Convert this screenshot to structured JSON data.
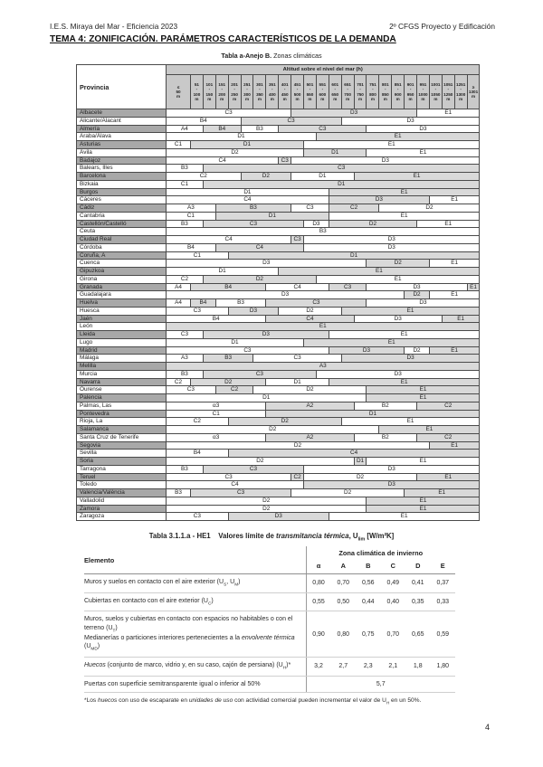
{
  "page": {
    "header_left": "I.E.S. Miraya del Mar - Eficiencia 2023",
    "header_right": "2º CFGS Proyecto y Edificación",
    "title": "TEMA 4: ZONIFICACIÓN. PARÁMETROS CARACTERÍSTICOS DE LA DEMANDA",
    "page_number": "4"
  },
  "climate_table": {
    "caption_bold": "Tabla a-Anejo B.",
    "caption_rest": " Zonas climáticas",
    "province_header": "Provincia",
    "altitude_header": "Altitud sobre el nivel del mar (h)",
    "altitude_unit": "m",
    "altitude_columns": [
      "≤ 50",
      "51-100",
      "101-150",
      "151-200",
      "201-250",
      "251-300",
      "301-350",
      "351-400",
      "401-450",
      "451-500",
      "501-550",
      "551-600",
      "601-650",
      "651-700",
      "701-750",
      "751-800",
      "801-850",
      "851-900",
      "901-950",
      "951-1000",
      "1001-1050",
      "1051-1250",
      "1251-1300",
      "≥ 1301"
    ],
    "rows": [
      {
        "province": "Albacete",
        "cells": [
          [
            "C3",
            9
          ],
          [
            "D3",
            10
          ],
          [
            "E1",
            5
          ]
        ]
      },
      {
        "province": "Alicante/Alacant",
        "cells": [
          [
            "B4",
            5
          ],
          [
            "C3",
            8
          ],
          [
            "D3",
            11
          ]
        ]
      },
      {
        "province": "Almería",
        "cells": [
          [
            "A4",
            2
          ],
          [
            "B4",
            3
          ],
          [
            "B3",
            3
          ],
          [
            "C3",
            7
          ],
          [
            "D3",
            9
          ]
        ]
      },
      {
        "province": "Araba/Álava",
        "cells": [
          [
            "D1",
            11
          ],
          [
            "E1",
            13
          ]
        ]
      },
      {
        "province": "Asturias",
        "cells": [
          [
            "C1",
            1
          ],
          [
            "D1",
            9
          ],
          [
            "E1",
            14
          ]
        ]
      },
      {
        "province": "Ávila",
        "cells": [
          [
            "D2",
            10
          ],
          [
            "D1",
            5
          ],
          [
            "E1",
            9
          ]
        ]
      },
      {
        "province": "Badajoz",
        "cells": [
          [
            "C4",
            8
          ],
          [
            "C3",
            1
          ],
          [
            "D3",
            15
          ]
        ]
      },
      {
        "province": "Balears, Illes",
        "cells": [
          [
            "B3",
            2
          ],
          [
            "C3",
            22
          ]
        ]
      },
      {
        "province": "Barcelona",
        "cells": [
          [
            "C2",
            5
          ],
          [
            "D2",
            4
          ],
          [
            "D1",
            5
          ],
          [
            "E1",
            10
          ]
        ]
      },
      {
        "province": "Bizkaia",
        "cells": [
          [
            "C1",
            2
          ],
          [
            "D1",
            22
          ]
        ]
      },
      {
        "province": "Burgos",
        "cells": [
          [
            "D1",
            12
          ],
          [
            "E1",
            12
          ]
        ]
      },
      {
        "province": "Cáceres",
        "cells": [
          [
            "C4",
            12
          ],
          [
            "D3",
            8
          ],
          [
            "E1",
            4
          ]
        ]
      },
      {
        "province": "Cádiz",
        "cells": [
          [
            "A3",
            3
          ],
          [
            "B3",
            6
          ],
          [
            "C3",
            3
          ],
          [
            "C2",
            4
          ],
          [
            "D2",
            8
          ]
        ]
      },
      {
        "province": "Cantabria",
        "cells": [
          [
            "C1",
            3
          ],
          [
            "D1",
            9
          ],
          [
            "E1",
            12
          ]
        ]
      },
      {
        "province": "Castellón/Castelló",
        "cells": [
          [
            "B3",
            2
          ],
          [
            "C3",
            8
          ],
          [
            "D3",
            2
          ],
          [
            "D2",
            7
          ],
          [
            "E1",
            5
          ]
        ]
      },
      {
        "province": "Ceuta",
        "cells": [
          [
            "B3",
            24
          ]
        ]
      },
      {
        "province": "Ciudad Real",
        "cells": [
          [
            "C4",
            9
          ],
          [
            "C3",
            1
          ],
          [
            "D3",
            14
          ]
        ]
      },
      {
        "province": "Córdoba",
        "cells": [
          [
            "B4",
            3
          ],
          [
            "C4",
            7
          ],
          [
            "D3",
            14
          ]
        ]
      },
      {
        "province": "Coruña, A",
        "cells": [
          [
            "C1",
            4
          ],
          [
            "D1",
            20
          ]
        ]
      },
      {
        "province": "Cuenca",
        "cells": [
          [
            "D3",
            15
          ],
          [
            "D2",
            5
          ],
          [
            "E1",
            4
          ]
        ]
      },
      {
        "province": "Gipuzkoa",
        "cells": [
          [
            "D1",
            8
          ],
          [
            "E1",
            16
          ]
        ]
      },
      {
        "province": "Girona",
        "cells": [
          [
            "C2",
            2
          ],
          [
            "D2",
            9
          ],
          [
            "E1",
            13
          ]
        ]
      },
      {
        "province": "Granada",
        "cells": [
          [
            "A4",
            1
          ],
          [
            "B4",
            6
          ],
          [
            "C4",
            5
          ],
          [
            "C3",
            3
          ],
          [
            "D3",
            8
          ],
          [
            "E1",
            1
          ]
        ]
      },
      {
        "province": "Guadalajara",
        "cells": [
          [
            "D3",
            18
          ],
          [
            "D2",
            2
          ],
          [
            "E1",
            4
          ]
        ]
      },
      {
        "province": "Huelva",
        "cells": [
          [
            "A4",
            1
          ],
          [
            "B4",
            2
          ],
          [
            "B3",
            4
          ],
          [
            "C3",
            8
          ],
          [
            "D3",
            9
          ]
        ]
      },
      {
        "province": "Huesca",
        "cells": [
          [
            "C3",
            4
          ],
          [
            "D3",
            4
          ],
          [
            "D2",
            5
          ],
          [
            "E1",
            11
          ]
        ]
      },
      {
        "province": "Jaén",
        "cells": [
          [
            "B4",
            7
          ],
          [
            "C4",
            7
          ],
          [
            "D3",
            7
          ],
          [
            "E1",
            3
          ]
        ]
      },
      {
        "province": "León",
        "cells": [
          [
            "E1",
            24,
            1
          ]
        ]
      },
      {
        "province": "Lleida",
        "cells": [
          [
            "C3",
            2
          ],
          [
            "D3",
            10
          ],
          [
            "E1",
            12
          ]
        ]
      },
      {
        "province": "Lugo",
        "cells": [
          [
            "D1",
            10
          ],
          [
            "E1",
            14
          ]
        ]
      },
      {
        "province": "Madrid",
        "cells": [
          [
            "C3",
            12
          ],
          [
            "D3",
            6
          ],
          [
            "D2",
            2
          ],
          [
            "E1",
            4
          ]
        ]
      },
      {
        "province": "Málaga",
        "cells": [
          [
            "A3",
            2
          ],
          [
            "B3",
            4
          ],
          [
            "C3",
            7
          ],
          [
            "D3",
            11
          ]
        ]
      },
      {
        "province": "Melilla",
        "cells": [
          [
            "A3",
            24,
            1
          ]
        ]
      },
      {
        "province": "Murcia",
        "cells": [
          [
            "B3",
            2
          ],
          [
            "C3",
            9
          ],
          [
            "D3",
            13
          ]
        ]
      },
      {
        "province": "Navarra",
        "cells": [
          [
            "C2",
            1
          ],
          [
            "D2",
            6
          ],
          [
            "D1",
            5
          ],
          [
            "E1",
            12
          ]
        ]
      },
      {
        "province": "Ourense",
        "cells": [
          [
            "C3",
            3
          ],
          [
            "C2",
            3
          ],
          [
            "D2",
            9
          ],
          [
            "E1",
            9
          ]
        ]
      },
      {
        "province": "Palencia",
        "cells": [
          [
            "D1",
            15
          ],
          [
            "E1",
            9
          ]
        ]
      },
      {
        "province": "Palmas, Las",
        "cells": [
          [
            "α3",
            7
          ],
          [
            "A2",
            7
          ],
          [
            "B2",
            5
          ],
          [
            "C2",
            5
          ]
        ]
      },
      {
        "province": "Pontevedra",
        "cells": [
          [
            "C1",
            7
          ],
          [
            "D1",
            17
          ]
        ]
      },
      {
        "province": "Rioja, La",
        "cells": [
          [
            "C2",
            4
          ],
          [
            "D2",
            9
          ],
          [
            "E1",
            11
          ]
        ]
      },
      {
        "province": "Salamanca",
        "cells": [
          [
            "D2",
            16
          ],
          [
            "E1",
            8
          ]
        ]
      },
      {
        "province": "Santa Cruz de Tenerife",
        "cells": [
          [
            "α3",
            7
          ],
          [
            "A2",
            7
          ],
          [
            "B2",
            5
          ],
          [
            "C2",
            5
          ]
        ]
      },
      {
        "province": "Segovia",
        "cells": [
          [
            "D2",
            20
          ],
          [
            "E1",
            4
          ]
        ]
      },
      {
        "province": "Sevilla",
        "cells": [
          [
            "B4",
            4
          ],
          [
            "C4",
            20
          ]
        ]
      },
      {
        "province": "Soria",
        "cells": [
          [
            "D2",
            14
          ],
          [
            "D1",
            1
          ],
          [
            "E1",
            9
          ]
        ]
      },
      {
        "province": "Tarragona",
        "cells": [
          [
            "B3",
            2
          ],
          [
            "C3",
            8
          ],
          [
            "D3",
            14
          ]
        ]
      },
      {
        "province": "Teruel",
        "cells": [
          [
            "C3",
            9
          ],
          [
            "C2",
            1
          ],
          [
            "D2",
            9
          ],
          [
            "E1",
            5
          ]
        ]
      },
      {
        "province": "Toledo",
        "cells": [
          [
            "C4",
            10
          ],
          [
            "D3",
            14
          ]
        ]
      },
      {
        "province": "Valencia/València",
        "cells": [
          [
            "B3",
            1
          ],
          [
            "C3",
            8
          ],
          [
            "D2",
            9
          ],
          [
            "E1",
            6
          ]
        ]
      },
      {
        "province": "Valladolid",
        "cells": [
          [
            "D2",
            15
          ],
          [
            "E1",
            9
          ]
        ]
      },
      {
        "province": "Zamora",
        "cells": [
          [
            "D2",
            15
          ],
          [
            "E1",
            9
          ]
        ]
      },
      {
        "province": "Zaragoza",
        "cells": [
          [
            "C3",
            4
          ],
          [
            "D3",
            8
          ],
          [
            "E1",
            12
          ]
        ]
      }
    ]
  },
  "u_table": {
    "title_html": "Tabla 3.1.1.a - HE1&nbsp;&nbsp;&nbsp;&nbsp;Valores límite de <i>transmitancia térmica</i>, U<sub>lim</sub> [W/m²K]",
    "element_header": "Elemento",
    "zone_header": "Zona climática de invierno",
    "zone_columns": [
      "α",
      "A",
      "B",
      "C",
      "D",
      "E"
    ],
    "rows": [
      {
        "label_html": "Muros y suelos en contacto con el aire exterior (U<sub>S</sub>, U<sub>M</sub>)",
        "values": [
          "0,80",
          "0,70",
          "0,56",
          "0,49",
          "0,41",
          "0,37"
        ]
      },
      {
        "label_html": "Cubiertas en contacto con el aire exterior (U<sub>C</sub>)",
        "values": [
          "0,55",
          "0,50",
          "0,44",
          "0,40",
          "0,35",
          "0,33"
        ]
      },
      {
        "label_html": "Muros, suelos y cubiertas en contacto con espacios no habitables o con el terreno (U<sub>T</sub>)<br>Medianerías o particiones interiores pertenecientes a la <i>envolvente térmica</i> (U<sub>MD</sub>)",
        "values": [
          "0,90",
          "0,80",
          "0,75",
          "0,70",
          "0,65",
          "0,59"
        ]
      },
      {
        "label_html": "<i>Huecos</i> (conjunto de marco, vidrio y, en su caso, cajón de persiana) (U<sub>H</sub>)*",
        "values": [
          "3,2",
          "2,7",
          "2,3",
          "2,1",
          "1,8",
          "1,80"
        ]
      },
      {
        "label_html": "Puertas con superficie semitransparente igual o inferior al 50%",
        "span_value": "5,7"
      }
    ],
    "footnote_html": "*Los <i>huecos</i> con uso de escaparate en <i>unidades de uso</i> con actividad comercial pueden incrementar el valor de U<sub>H</sub> en un 50%."
  },
  "colors": {
    "province_shaded": "#a8a8a8",
    "header_cell": "#c9c9c9",
    "zone_shaded": "#d9d9d9",
    "table_border": "#4a4a4a"
  }
}
